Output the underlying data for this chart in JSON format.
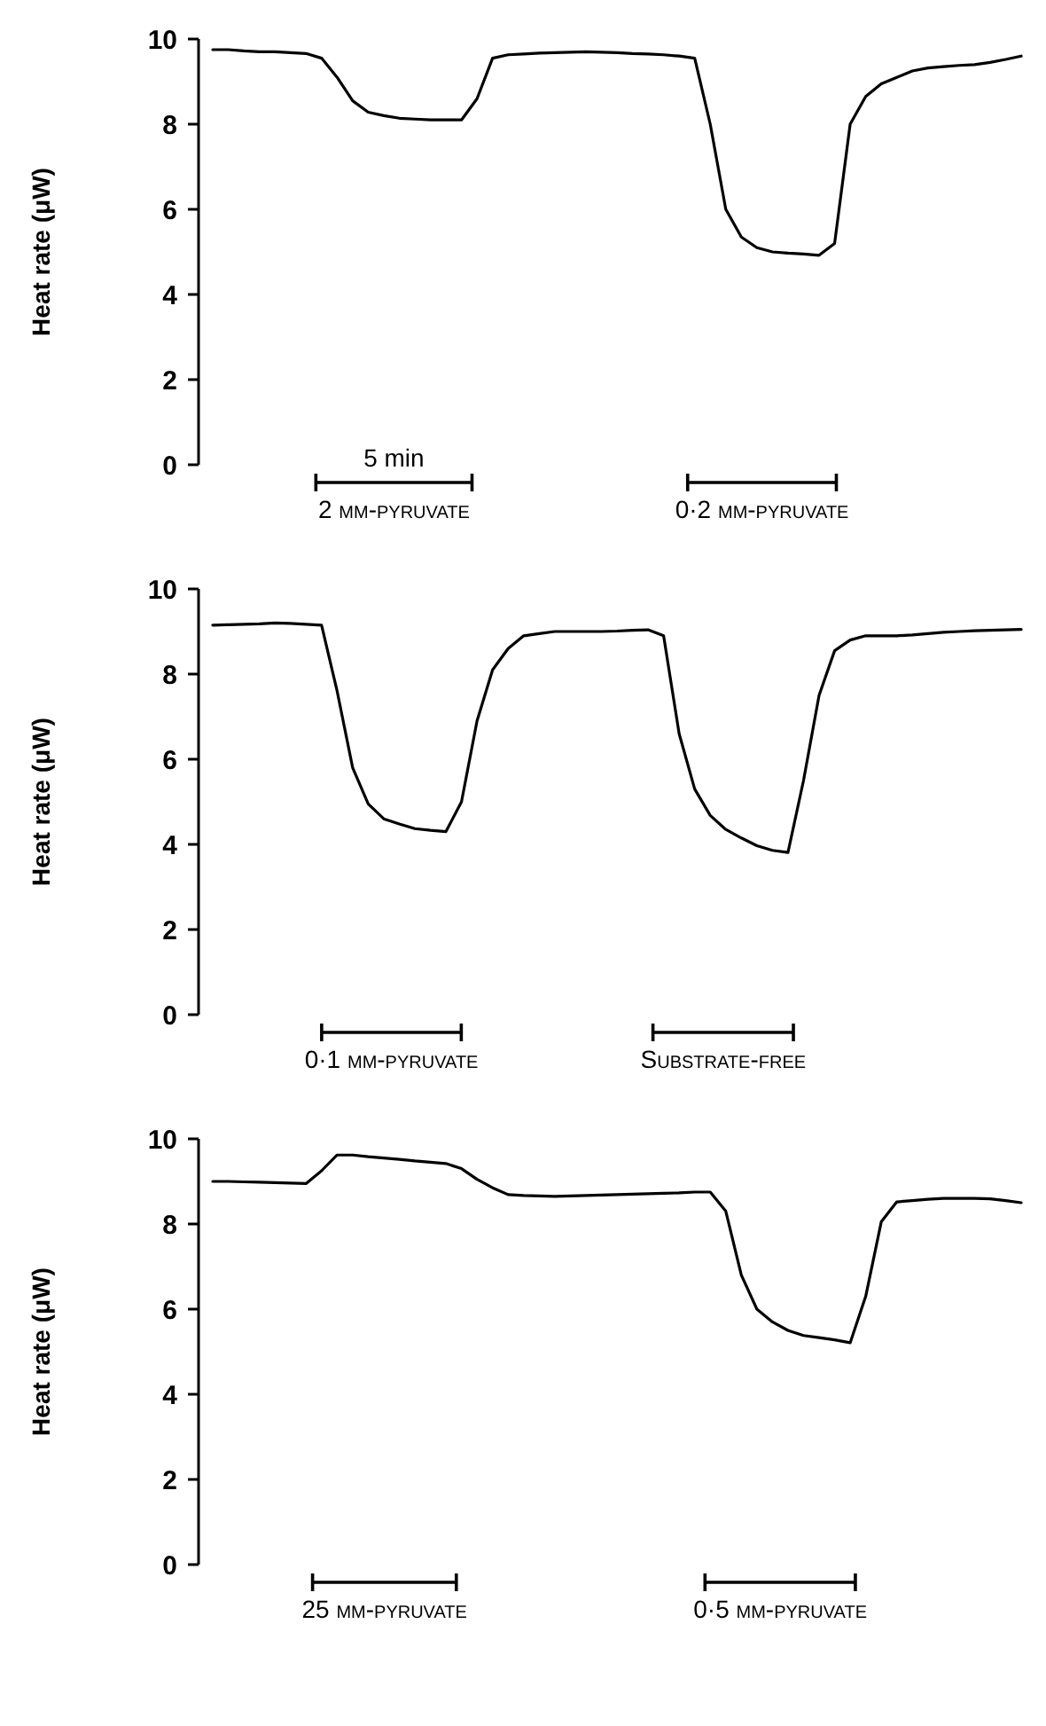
{
  "chart_data": [
    {
      "type": "line",
      "ylabel": "Heat rate (μW)",
      "ylim": [
        0,
        10
      ],
      "yticks": [
        0,
        2,
        4,
        6,
        8,
        10
      ],
      "tick_labels": "y",
      "annotations": [
        "5 min",
        "2 mm-pyruvate",
        "0·2 mm-pyruvate"
      ],
      "categories": [
        null,
        null,
        null,
        null,
        null,
        null,
        null,
        null,
        null,
        null,
        null,
        null,
        null,
        null,
        null,
        null,
        null,
        null,
        null,
        null,
        null,
        null,
        null,
        null,
        null,
        null,
        null,
        null,
        null,
        null,
        null,
        null,
        null,
        null,
        null,
        null,
        null,
        null,
        null,
        null,
        null,
        null,
        null,
        null,
        null,
        null,
        null,
        null,
        null,
        null,
        null,
        null,
        null
      ],
      "series": [
        {
          "color": "#000000",
          "values": [
            9.75,
            9.75,
            9.72,
            9.7,
            9.7,
            9.68,
            9.66,
            9.55,
            9.1,
            8.55,
            8.28,
            8.2,
            8.14,
            8.12,
            8.1,
            8.1,
            8.1,
            8.6,
            9.55,
            9.63,
            9.65,
            9.67,
            9.68,
            9.69,
            9.7,
            9.69,
            9.68,
            9.66,
            9.65,
            9.63,
            9.6,
            9.55,
            8,
            6,
            5.35,
            5.1,
            5,
            4.97,
            4.95,
            4.92,
            5.2,
            8,
            8.65,
            8.95,
            9.1,
            9.25,
            9.32,
            9.35,
            9.38,
            9.4,
            9.45,
            9.52,
            9.6
          ]
        }
      ]
    },
    {
      "type": "line",
      "ylabel": "Heat rate (μW)",
      "ylim": [
        0,
        10
      ],
      "yticks": [
        0,
        2,
        4,
        6,
        8,
        10
      ],
      "tick_labels": "y",
      "annotations": [
        "0·1 mm-pyruvate",
        "Substrate-free"
      ],
      "categories": [
        null,
        null,
        null,
        null,
        null,
        null,
        null,
        null,
        null,
        null,
        null,
        null,
        null,
        null,
        null,
        null,
        null,
        null,
        null,
        null,
        null,
        null,
        null,
        null,
        null,
        null,
        null,
        null,
        null,
        null,
        null,
        null,
        null,
        null,
        null,
        null,
        null,
        null,
        null,
        null,
        null,
        null,
        null,
        null,
        null,
        null,
        null,
        null,
        null,
        null,
        null,
        null,
        null
      ],
      "series": [
        {
          "color": "#000000",
          "values": [
            9.15,
            9.16,
            9.17,
            9.18,
            9.2,
            9.19,
            9.17,
            9.15,
            7.6,
            5.8,
            4.95,
            4.6,
            4.48,
            4.37,
            4.33,
            4.3,
            5,
            6.9,
            8.1,
            8.6,
            8.9,
            8.95,
            9,
            9,
            9,
            9,
            9.01,
            9.03,
            9.04,
            8.9,
            6.6,
            5.3,
            4.68,
            4.35,
            4.15,
            3.97,
            3.86,
            3.81,
            5.5,
            7.5,
            8.55,
            8.8,
            8.9,
            8.9,
            8.9,
            8.92,
            8.95,
            8.98,
            9,
            9.02,
            9.03,
            9.04,
            9.05
          ]
        }
      ]
    },
    {
      "type": "line",
      "ylabel": "Heat rate (μW)",
      "ylim": [
        0,
        10
      ],
      "yticks": [
        0,
        2,
        4,
        6,
        8,
        10
      ],
      "tick_labels": "y",
      "annotations": [
        "25 mm-pyruvate",
        "0·5 mm-pyruvate"
      ],
      "categories": [
        null,
        null,
        null,
        null,
        null,
        null,
        null,
        null,
        null,
        null,
        null,
        null,
        null,
        null,
        null,
        null,
        null,
        null,
        null,
        null,
        null,
        null,
        null,
        null,
        null,
        null,
        null,
        null,
        null,
        null,
        null,
        null,
        null,
        null,
        null,
        null,
        null,
        null,
        null,
        null,
        null,
        null,
        null,
        null,
        null,
        null,
        null,
        null,
        null,
        null,
        null,
        null,
        null
      ],
      "series": [
        {
          "color": "#000000",
          "values": [
            9,
            9,
            8.99,
            8.98,
            8.97,
            8.96,
            8.95,
            9.25,
            9.62,
            9.62,
            9.58,
            9.55,
            9.52,
            9.48,
            9.45,
            9.42,
            9.3,
            9.05,
            8.85,
            8.69,
            8.67,
            8.66,
            8.65,
            8.66,
            8.67,
            8.68,
            8.69,
            8.7,
            8.71,
            8.72,
            8.73,
            8.75,
            8.75,
            8.3,
            6.8,
            6,
            5.7,
            5.5,
            5.38,
            5.33,
            5.28,
            5.21,
            6.3,
            8.05,
            8.52,
            8.55,
            8.58,
            8.6,
            8.6,
            8.6,
            8.59,
            8.55,
            8.5
          ]
        }
      ]
    }
  ]
}
